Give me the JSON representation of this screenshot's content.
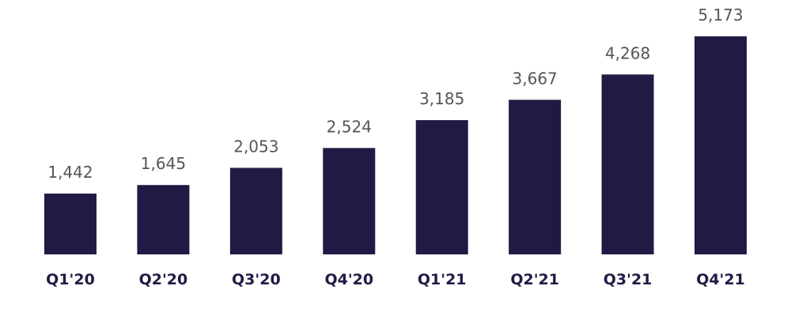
{
  "chart_data": {
    "type": "bar",
    "categories": [
      "Q1'20",
      "Q2'20",
      "Q3'20",
      "Q4'20",
      "Q1'21",
      "Q2'21",
      "Q3'21",
      "Q4'21"
    ],
    "values": [
      1442,
      1645,
      2053,
      2524,
      3185,
      3667,
      4268,
      5173
    ],
    "value_labels": [
      "1,442",
      "1,645",
      "2,053",
      "2,524",
      "3,185",
      "3,667",
      "4,268",
      "5,173"
    ],
    "title": "",
    "xlabel": "",
    "ylabel": "",
    "ylim": [
      0,
      5173
    ],
    "grid": false,
    "legend": "none"
  },
  "colors": {
    "bar": "#221a45",
    "category_label": "#221a45",
    "value_label": "#555555"
  }
}
